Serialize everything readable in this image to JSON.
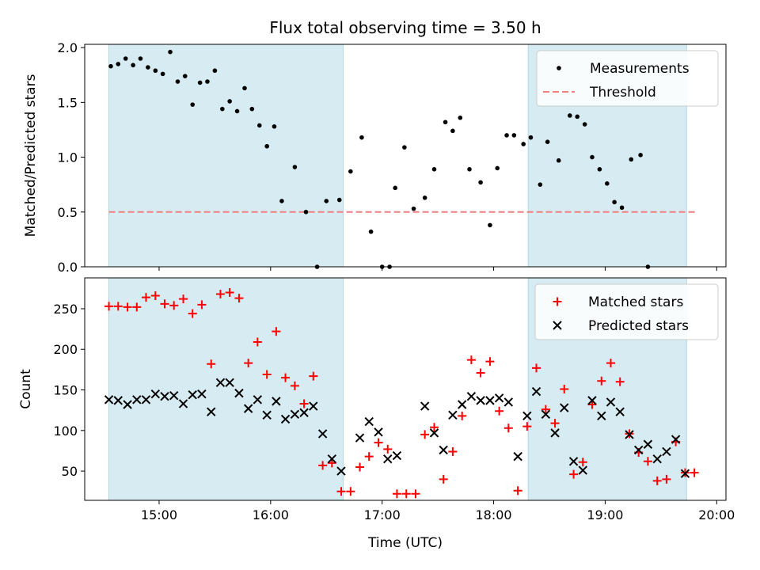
{
  "title": "Flux total observing time = 3.50 h",
  "colors": {
    "shade": "#add8e6",
    "threshold": "#f08080",
    "matched": "#ff0000",
    "predicted": "#000000",
    "measurement": "#000000"
  },
  "x_axis": {
    "label": "Time (UTC)",
    "range_hours": [
      14.333,
      20.083
    ],
    "ticks": [
      {
        "value": 15,
        "label": "15:00"
      },
      {
        "value": 16,
        "label": "16:00"
      },
      {
        "value": 17,
        "label": "17:00"
      },
      {
        "value": 18,
        "label": "18:00"
      },
      {
        "value": 19,
        "label": "19:00"
      },
      {
        "value": 20,
        "label": "20:00"
      }
    ]
  },
  "chart_data": [
    {
      "type": "scatter",
      "name": "ratio-panel",
      "ylabel": "Matched/Predicted stars",
      "ylim": [
        0,
        2.03
      ],
      "yticks": [
        {
          "value": 0.0,
          "label": "0.0"
        },
        {
          "value": 0.5,
          "label": "0.5"
        },
        {
          "value": 1.0,
          "label": "1.0"
        },
        {
          "value": 1.5,
          "label": "1.5"
        },
        {
          "value": 2.0,
          "label": "2.0"
        }
      ],
      "shaded_intervals": [
        [
          14.55,
          16.65
        ],
        [
          18.31,
          19.73
        ]
      ],
      "threshold": {
        "value": 0.5,
        "x_range": [
          14.55,
          19.82
        ]
      },
      "legend": {
        "placement": "upper right",
        "entries": [
          "Measurements",
          "Threshold"
        ]
      },
      "series": [
        {
          "name": "Measurements",
          "points": [
            [
              14.567,
              1.83
            ],
            [
              14.633,
              1.85
            ],
            [
              14.7,
              1.9
            ],
            [
              14.767,
              1.84
            ],
            [
              14.833,
              1.9
            ],
            [
              14.9,
              1.82
            ],
            [
              14.967,
              1.79
            ],
            [
              15.033,
              1.76
            ],
            [
              15.1,
              1.96
            ],
            [
              15.167,
              1.69
            ],
            [
              15.233,
              1.74
            ],
            [
              15.3,
              1.48
            ],
            [
              15.367,
              1.68
            ],
            [
              15.433,
              1.69
            ],
            [
              15.5,
              1.79
            ],
            [
              15.567,
              1.44
            ],
            [
              15.633,
              1.51
            ],
            [
              15.7,
              1.42
            ],
            [
              15.767,
              1.63
            ],
            [
              15.833,
              1.44
            ],
            [
              15.9,
              1.29
            ],
            [
              15.967,
              1.1
            ],
            [
              16.033,
              1.28
            ],
            [
              16.1,
              0.6
            ],
            [
              16.217,
              0.91
            ],
            [
              16.317,
              0.5
            ],
            [
              16.417,
              0.0
            ],
            [
              16.5,
              0.6
            ],
            [
              16.617,
              0.61
            ],
            [
              16.717,
              0.87
            ],
            [
              16.817,
              1.18
            ],
            [
              16.9,
              0.32
            ],
            [
              17.0,
              0.0
            ],
            [
              17.067,
              0.0
            ],
            [
              17.117,
              0.72
            ],
            [
              17.2,
              1.09
            ],
            [
              17.283,
              0.53
            ],
            [
              17.383,
              0.63
            ],
            [
              17.467,
              0.89
            ],
            [
              17.567,
              1.32
            ],
            [
              17.633,
              1.24
            ],
            [
              17.7,
              1.36
            ],
            [
              17.783,
              0.89
            ],
            [
              17.883,
              0.77
            ],
            [
              17.967,
              0.38
            ],
            [
              18.033,
              0.9
            ],
            [
              18.117,
              1.2
            ],
            [
              18.183,
              1.2
            ],
            [
              18.267,
              1.12
            ],
            [
              18.333,
              1.18
            ],
            [
              18.417,
              0.75
            ],
            [
              18.483,
              1.14
            ],
            [
              18.583,
              0.97
            ],
            [
              18.683,
              1.38
            ],
            [
              18.75,
              1.37
            ],
            [
              18.817,
              1.3
            ],
            [
              18.883,
              1.0
            ],
            [
              18.95,
              0.89
            ],
            [
              19.017,
              0.76
            ],
            [
              19.083,
              0.59
            ],
            [
              19.15,
              0.54
            ],
            [
              19.233,
              0.98
            ],
            [
              19.317,
              1.02
            ],
            [
              19.383,
              0.0
            ]
          ]
        }
      ]
    },
    {
      "type": "scatter",
      "name": "count-panel",
      "ylabel": "Count",
      "ylim": [
        14,
        288
      ],
      "yticks": [
        {
          "value": 50,
          "label": "50"
        },
        {
          "value": 100,
          "label": "100"
        },
        {
          "value": 150,
          "label": "150"
        },
        {
          "value": 200,
          "label": "200"
        },
        {
          "value": 250,
          "label": "250"
        }
      ],
      "shaded_intervals": [
        [
          14.55,
          16.65
        ],
        [
          18.31,
          19.73
        ]
      ],
      "legend": {
        "placement": "upper right",
        "entries": [
          "Matched stars",
          "Predicted stars"
        ]
      },
      "series": [
        {
          "name": "Matched stars",
          "points": [
            [
              14.55,
              253
            ],
            [
              14.633,
              253
            ],
            [
              14.717,
              252
            ],
            [
              14.8,
              252
            ],
            [
              14.883,
              264
            ],
            [
              14.967,
              266
            ],
            [
              15.05,
              256
            ],
            [
              15.133,
              254
            ],
            [
              15.217,
              262
            ],
            [
              15.3,
              244
            ],
            [
              15.383,
              255
            ],
            [
              15.467,
              182
            ],
            [
              15.55,
              268
            ],
            [
              15.633,
              270
            ],
            [
              15.717,
              263
            ],
            [
              15.8,
              183
            ],
            [
              15.883,
              209
            ],
            [
              15.967,
              169
            ],
            [
              16.05,
              222
            ],
            [
              16.133,
              165
            ],
            [
              16.217,
              155
            ],
            [
              16.3,
              133
            ],
            [
              16.383,
              167
            ],
            [
              16.467,
              57
            ],
            [
              16.55,
              60
            ],
            [
              16.633,
              25
            ],
            [
              16.717,
              25
            ],
            [
              16.8,
              55
            ],
            [
              16.883,
              68
            ],
            [
              16.967,
              85
            ],
            [
              17.05,
              77
            ],
            [
              17.133,
              22
            ],
            [
              17.217,
              22
            ],
            [
              17.3,
              22
            ],
            [
              17.383,
              95
            ],
            [
              17.467,
              104
            ],
            [
              17.55,
              40
            ],
            [
              17.633,
              74
            ],
            [
              17.717,
              118
            ],
            [
              17.8,
              187
            ],
            [
              17.883,
              171
            ],
            [
              17.967,
              185
            ],
            [
              18.05,
              124
            ],
            [
              18.133,
              103
            ],
            [
              18.217,
              26
            ],
            [
              18.3,
              105
            ],
            [
              18.383,
              177
            ],
            [
              18.467,
              126
            ],
            [
              18.55,
              109
            ],
            [
              18.633,
              151
            ],
            [
              18.717,
              46
            ],
            [
              18.8,
              61
            ],
            [
              18.883,
              132
            ],
            [
              18.967,
              161
            ],
            [
              19.05,
              183
            ],
            [
              19.133,
              160
            ],
            [
              19.217,
              96
            ],
            [
              19.3,
              73
            ],
            [
              19.383,
              62
            ],
            [
              19.467,
              38
            ],
            [
              19.55,
              40
            ],
            [
              19.633,
              86
            ],
            [
              19.717,
              48
            ],
            [
              19.8,
              48
            ]
          ]
        },
        {
          "name": "Predicted stars",
          "points": [
            [
              14.55,
              138
            ],
            [
              14.633,
              137
            ],
            [
              14.717,
              132
            ],
            [
              14.8,
              138
            ],
            [
              14.883,
              138
            ],
            [
              14.967,
              145
            ],
            [
              15.05,
              142
            ],
            [
              15.133,
              143
            ],
            [
              15.217,
              133
            ],
            [
              15.3,
              144
            ],
            [
              15.383,
              145
            ],
            [
              15.467,
              123
            ],
            [
              15.55,
              159
            ],
            [
              15.633,
              159
            ],
            [
              15.717,
              146
            ],
            [
              15.8,
              127
            ],
            [
              15.883,
              138
            ],
            [
              15.967,
              119
            ],
            [
              16.05,
              136
            ],
            [
              16.133,
              114
            ],
            [
              16.217,
              120
            ],
            [
              16.3,
              122
            ],
            [
              16.383,
              130
            ],
            [
              16.467,
              96
            ],
            [
              16.55,
              65
            ],
            [
              16.633,
              50
            ],
            [
              16.8,
              91
            ],
            [
              16.883,
              111
            ],
            [
              16.967,
              98
            ],
            [
              17.05,
              65
            ],
            [
              17.133,
              69
            ],
            [
              17.383,
              130
            ],
            [
              17.467,
              97
            ],
            [
              17.55,
              76
            ],
            [
              17.633,
              119
            ],
            [
              17.717,
              132
            ],
            [
              17.8,
              142
            ],
            [
              17.883,
              137
            ],
            [
              17.967,
              137
            ],
            [
              18.05,
              140
            ],
            [
              18.133,
              135
            ],
            [
              18.217,
              68
            ],
            [
              18.3,
              118
            ],
            [
              18.383,
              148
            ],
            [
              18.467,
              120
            ],
            [
              18.55,
              97
            ],
            [
              18.633,
              128
            ],
            [
              18.717,
              62
            ],
            [
              18.8,
              51
            ],
            [
              18.883,
              137
            ],
            [
              18.967,
              118
            ],
            [
              19.05,
              135
            ],
            [
              19.133,
              123
            ],
            [
              19.217,
              95
            ],
            [
              19.3,
              76
            ],
            [
              19.383,
              83
            ],
            [
              19.467,
              65
            ],
            [
              19.55,
              74
            ],
            [
              19.633,
              89
            ],
            [
              19.717,
              47
            ]
          ]
        }
      ]
    }
  ]
}
